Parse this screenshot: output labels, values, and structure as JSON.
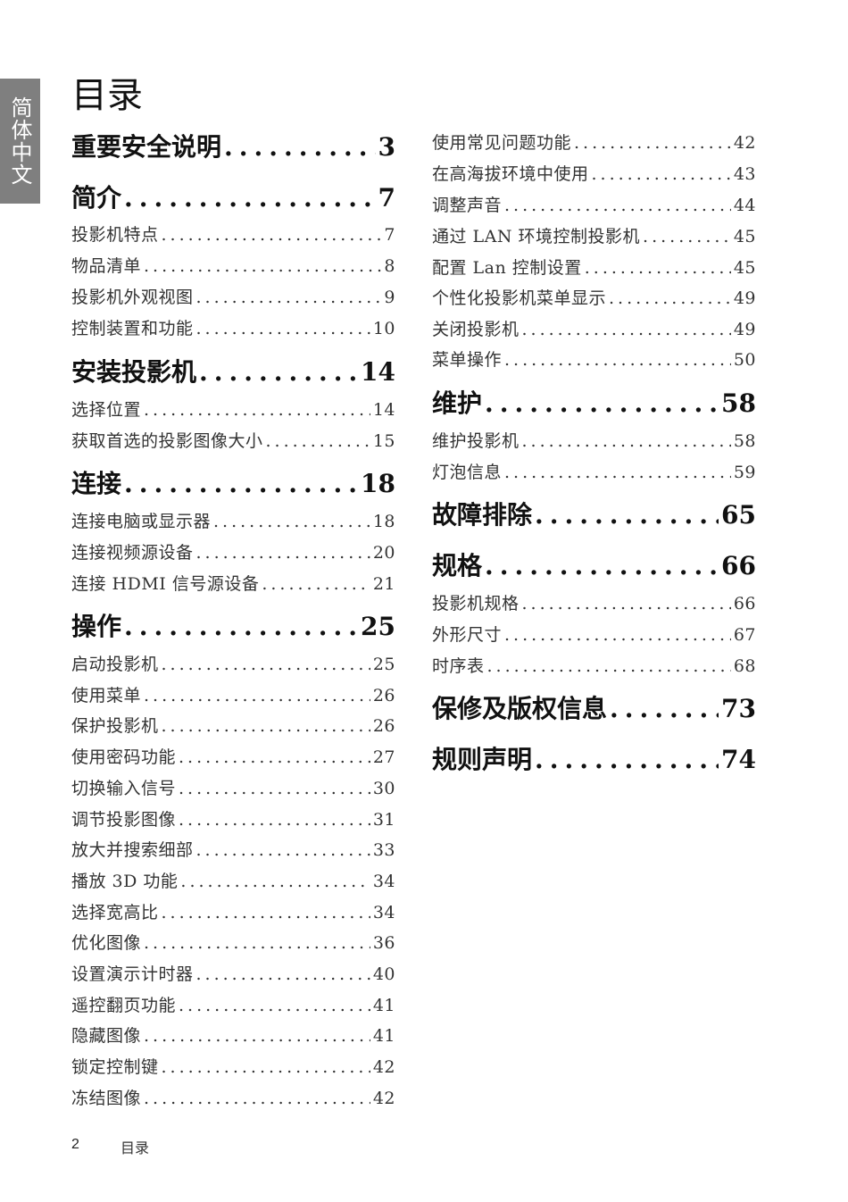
{
  "side_tab": "简体中文",
  "title": "目录",
  "left_column": [
    {
      "type": "head",
      "label": "重要安全说明",
      "page": "3"
    },
    {
      "type": "head",
      "label": "简介",
      "page": "7"
    },
    {
      "type": "sub",
      "label": "投影机特点",
      "page": "7"
    },
    {
      "type": "sub",
      "label": "物品清单",
      "page": "8"
    },
    {
      "type": "sub",
      "label": "投影机外观视图",
      "page": "9"
    },
    {
      "type": "sub",
      "label": "控制装置和功能",
      "page": "10"
    },
    {
      "type": "head",
      "label": "安装投影机",
      "page": "14"
    },
    {
      "type": "sub",
      "label": "选择位置",
      "page": "14"
    },
    {
      "type": "sub",
      "label": "获取首选的投影图像大小",
      "page": "15"
    },
    {
      "type": "head",
      "label": "连接",
      "page": "18"
    },
    {
      "type": "sub",
      "label": "连接电脑或显示器",
      "page": "18"
    },
    {
      "type": "sub",
      "label": "连接视频源设备",
      "page": "20"
    },
    {
      "type": "sub",
      "label": "连接 HDMI 信号源设备",
      "page": "21"
    },
    {
      "type": "head",
      "label": "操作",
      "page": "25"
    },
    {
      "type": "sub",
      "label": "启动投影机",
      "page": "25"
    },
    {
      "type": "sub",
      "label": "使用菜单",
      "page": "26"
    },
    {
      "type": "sub",
      "label": "保护投影机",
      "page": "26"
    },
    {
      "type": "sub",
      "label": "使用密码功能",
      "page": "27"
    },
    {
      "type": "sub",
      "label": "切换输入信号",
      "page": "30"
    },
    {
      "type": "sub",
      "label": "调节投影图像",
      "page": "31"
    },
    {
      "type": "sub",
      "label": "放大并搜索细部",
      "page": "33"
    },
    {
      "type": "sub",
      "label": "播放 3D 功能",
      "page": "34"
    },
    {
      "type": "sub",
      "label": "选择宽高比",
      "page": "34"
    },
    {
      "type": "sub",
      "label": "优化图像",
      "page": "36"
    },
    {
      "type": "sub",
      "label": "设置演示计时器",
      "page": "40"
    },
    {
      "type": "sub",
      "label": "遥控翻页功能",
      "page": "41"
    },
    {
      "type": "sub",
      "label": "隐藏图像",
      "page": "41"
    },
    {
      "type": "sub",
      "label": "锁定控制键",
      "page": "42"
    },
    {
      "type": "sub",
      "label": "冻结图像",
      "page": "42"
    }
  ],
  "right_column": [
    {
      "type": "sub",
      "label": "使用常见问题功能",
      "page": "42"
    },
    {
      "type": "sub",
      "label": "在高海拔环境中使用",
      "page": "43"
    },
    {
      "type": "sub",
      "label": "调整声音",
      "page": "44"
    },
    {
      "type": "sub",
      "label": "通过 LAN 环境控制投影机",
      "page": "45"
    },
    {
      "type": "sub",
      "label": "配置 Lan 控制设置",
      "page": "45"
    },
    {
      "type": "sub",
      "label": "个性化投影机菜单显示",
      "page": "49"
    },
    {
      "type": "sub",
      "label": "关闭投影机",
      "page": "49"
    },
    {
      "type": "sub",
      "label": "菜单操作",
      "page": "50"
    },
    {
      "type": "head",
      "label": "维护",
      "page": "58"
    },
    {
      "type": "sub",
      "label": "维护投影机",
      "page": "58"
    },
    {
      "type": "sub",
      "label": "灯泡信息",
      "page": "59"
    },
    {
      "type": "head",
      "label": "故障排除",
      "page": "65"
    },
    {
      "type": "head",
      "label": "规格",
      "page": "66"
    },
    {
      "type": "sub",
      "label": "投影机规格",
      "page": "66"
    },
    {
      "type": "sub",
      "label": "外形尺寸",
      "page": "67"
    },
    {
      "type": "sub",
      "label": "时序表",
      "page": "68"
    },
    {
      "type": "head",
      "label": "保修及版权信息",
      "page": "73"
    },
    {
      "type": "head",
      "label": "规则声明",
      "page": "74"
    }
  ],
  "footer": {
    "page_number": "2",
    "section": "目录"
  }
}
